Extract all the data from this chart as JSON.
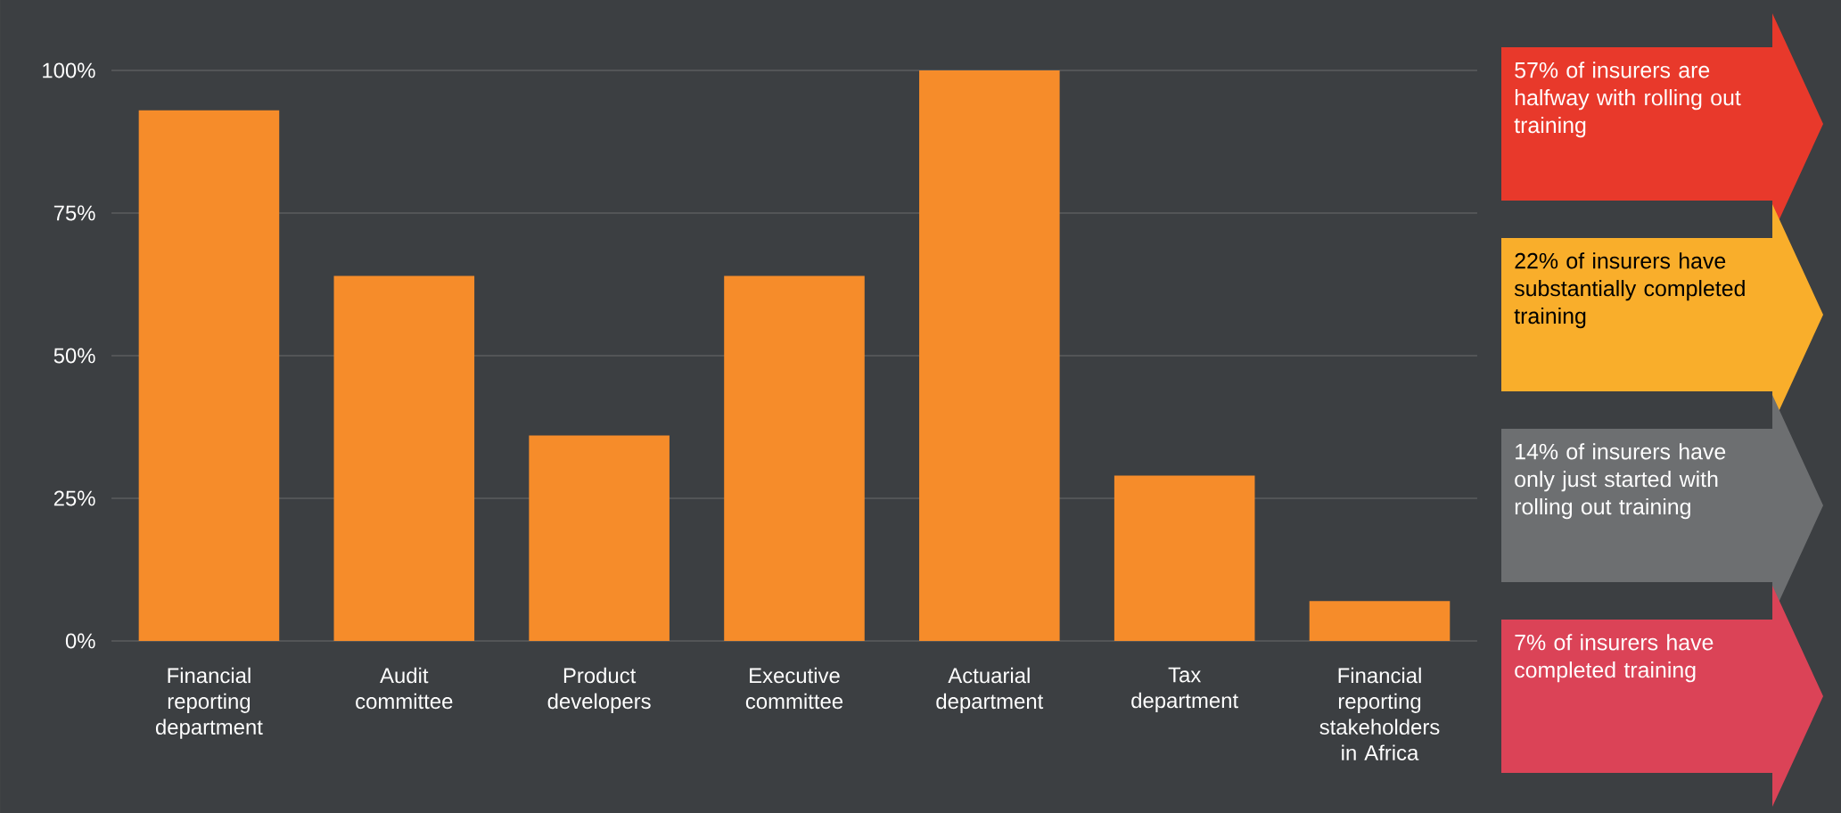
{
  "chart_data": {
    "type": "bar",
    "categories": [
      "Financial reporting department",
      "Audit committee",
      "Product developers",
      "Executive committee",
      "Actuarial department",
      "Tax department",
      "Financial reporting stakeholders in Africa"
    ],
    "values": [
      93,
      64,
      36,
      64,
      100,
      29,
      7
    ],
    "color": "#f68c2a",
    "ylim": [
      0,
      100
    ],
    "yticks": [
      {
        "value": 0,
        "label": "0%"
      },
      {
        "value": 25,
        "label": "25%"
      },
      {
        "value": 50,
        "label": "50%"
      },
      {
        "value": 75,
        "label": "75%"
      },
      {
        "value": 100,
        "label": "100%"
      }
    ],
    "grid": "y",
    "annotations": [
      "57% of insurers are halfway with rolling out training",
      "22% of insurers have substantially completed training",
      "14% of insurers have only just started with rolling out training",
      "7% of insurers have completed training"
    ]
  }
}
